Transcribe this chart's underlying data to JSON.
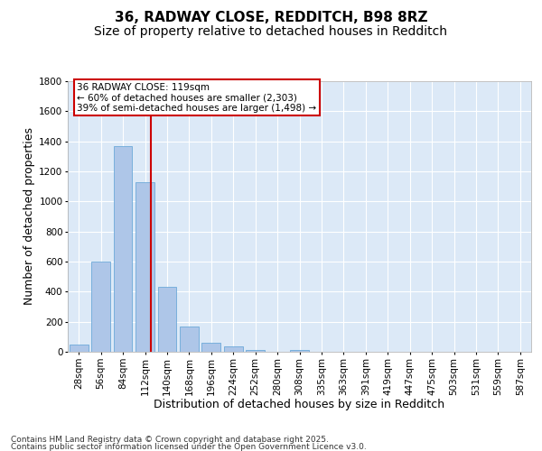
{
  "title_line1": "36, RADWAY CLOSE, REDDITCH, B98 8RZ",
  "title_line2": "Size of property relative to detached houses in Redditch",
  "xlabel": "Distribution of detached houses by size in Redditch",
  "ylabel": "Number of detached properties",
  "categories": [
    "28sqm",
    "56sqm",
    "84sqm",
    "112sqm",
    "140sqm",
    "168sqm",
    "196sqm",
    "224sqm",
    "252sqm",
    "280sqm",
    "308sqm",
    "335sqm",
    "363sqm",
    "391sqm",
    "419sqm",
    "447sqm",
    "475sqm",
    "503sqm",
    "531sqm",
    "559sqm",
    "587sqm"
  ],
  "values": [
    50,
    600,
    1370,
    1130,
    430,
    170,
    60,
    35,
    15,
    0,
    15,
    0,
    0,
    0,
    0,
    0,
    0,
    0,
    0,
    0,
    0
  ],
  "bar_color": "#aec6e8",
  "bar_edge_color": "#5a9fd4",
  "vline_color": "#cc0000",
  "annotation_line1": "36 RADWAY CLOSE: 119sqm",
  "annotation_line2": "← 60% of detached houses are smaller (2,303)",
  "annotation_line3": "39% of semi-detached houses are larger (1,498) →",
  "annotation_box_color": "#cc0000",
  "ylim": [
    0,
    1800
  ],
  "yticks": [
    0,
    200,
    400,
    600,
    800,
    1000,
    1200,
    1400,
    1600,
    1800
  ],
  "background_color": "#dce9f7",
  "grid_color": "#ffffff",
  "footer_line1": "Contains HM Land Registry data © Crown copyright and database right 2025.",
  "footer_line2": "Contains public sector information licensed under the Open Government Licence v3.0.",
  "title_fontsize": 11,
  "subtitle_fontsize": 10,
  "axis_label_fontsize": 9,
  "tick_fontsize": 7.5,
  "annotation_fontsize": 7.5,
  "footer_fontsize": 6.5
}
